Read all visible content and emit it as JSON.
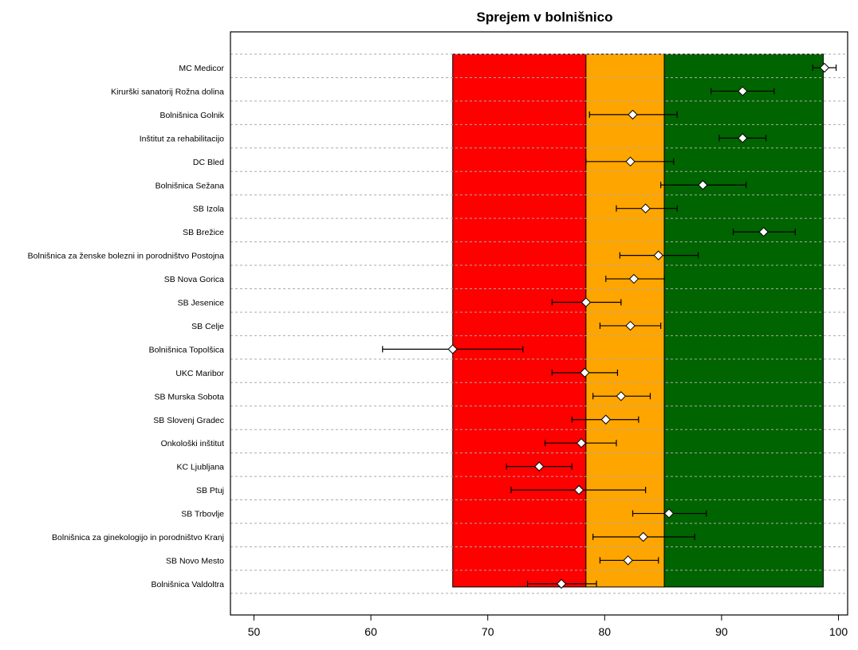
{
  "chart_data": {
    "type": "scatter",
    "title": "Sprejem v bolnišnico",
    "xlabel": "",
    "ylabel": "",
    "xlim": [
      48,
      101
    ],
    "xticks": [
      50,
      60,
      70,
      80,
      90,
      100
    ],
    "grid": "horizontal dashed",
    "bands": [
      {
        "from": 67.0,
        "to": 78.4,
        "color": "#ff0000"
      },
      {
        "from": 78.4,
        "to": 85.1,
        "color": "#ffa500"
      },
      {
        "from": 85.1,
        "to": 98.7,
        "color": "#006400"
      }
    ],
    "categories": [
      "MC Medicor",
      "Kirurški sanatorij Rožna dolina",
      "Bolnišnica Golnik",
      "Inštitut za rehabilitacijo",
      "DC Bled",
      "Bolnišnica Sežana",
      "SB Izola",
      "SB Brežice",
      "Bolnišnica za ženske bolezni in porodništvo Postojna",
      "SB Nova Gorica",
      "SB Jesenice",
      "SB Celje",
      "Bolnišnica Topolšica",
      "UKC Maribor",
      "SB Murska Sobota",
      "SB Slovenj Gradec",
      "Onkološki inštitut",
      "KC Ljubljana",
      "SB Ptuj",
      "SB Trbovlje",
      "Bolnišnica za ginekologijo in porodništvo Kranj",
      "SB Novo Mesto",
      "Bolnišnica Valdoltra"
    ],
    "values": [
      98.8,
      91.8,
      82.4,
      91.8,
      82.2,
      88.4,
      83.5,
      93.6,
      84.6,
      82.5,
      78.4,
      82.2,
      67.0,
      78.3,
      81.4,
      80.1,
      78.0,
      74.4,
      77.8,
      85.5,
      83.3,
      82.0,
      76.3
    ],
    "ci_lower": [
      97.8,
      89.1,
      78.7,
      89.8,
      78.4,
      84.8,
      81.0,
      91.0,
      81.3,
      80.1,
      75.5,
      79.6,
      61.0,
      75.5,
      79.0,
      77.2,
      74.9,
      71.6,
      72.0,
      82.4,
      79.0,
      79.6,
      73.4
    ],
    "ci_upper": [
      99.8,
      94.5,
      86.2,
      93.8,
      85.9,
      92.1,
      86.2,
      96.3,
      88.0,
      85.1,
      81.4,
      84.8,
      73.0,
      81.1,
      83.9,
      82.9,
      81.0,
      77.2,
      83.5,
      88.7,
      87.7,
      84.6,
      79.3
    ],
    "marker_color": "#ffffff",
    "errorbar_color": "#000000"
  }
}
